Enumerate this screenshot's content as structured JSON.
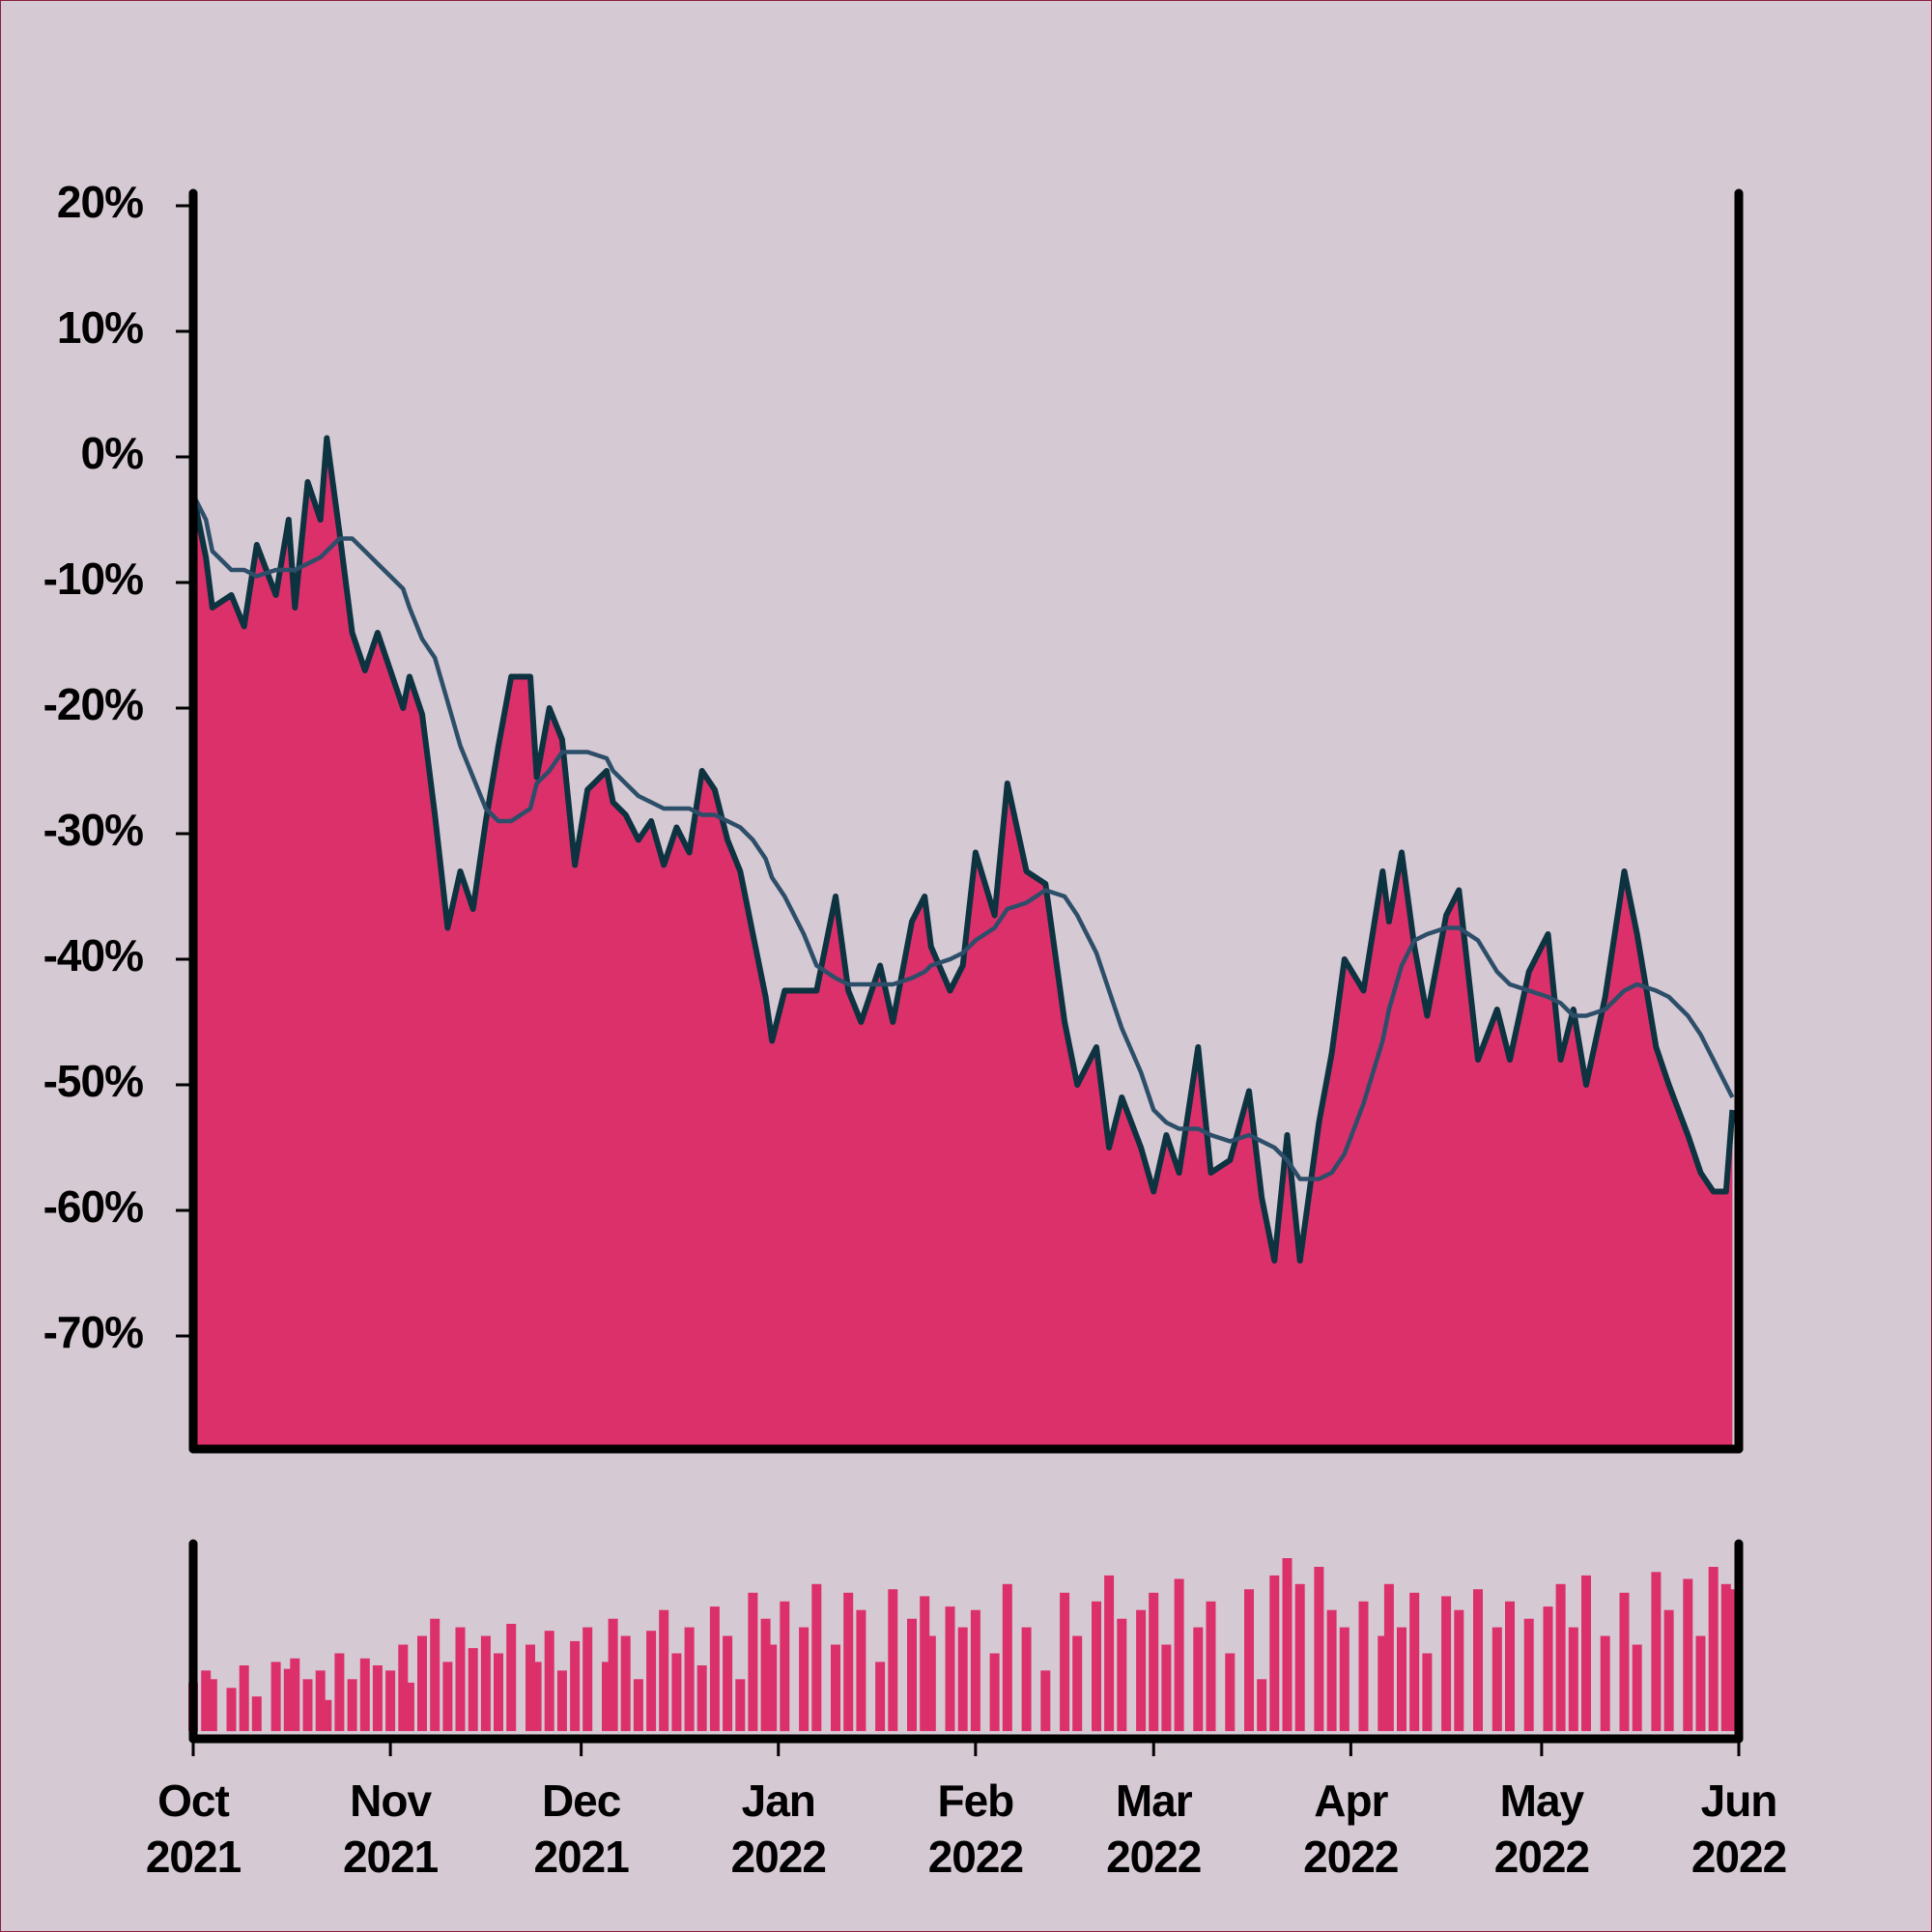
{
  "chart_data": {
    "type": "area",
    "x": [
      "2021-10-01",
      "2021-10-03",
      "2021-10-04",
      "2021-10-07",
      "2021-10-09",
      "2021-10-11",
      "2021-10-14",
      "2021-10-16",
      "2021-10-17",
      "2021-10-19",
      "2021-10-21",
      "2021-10-22",
      "2021-10-24",
      "2021-10-26",
      "2021-10-28",
      "2021-10-30",
      "2021-11-01",
      "2021-11-03",
      "2021-11-04",
      "2021-11-06",
      "2021-11-08",
      "2021-11-10",
      "2021-11-12",
      "2021-11-14",
      "2021-11-16",
      "2021-11-18",
      "2021-11-20",
      "2021-11-23",
      "2021-11-24",
      "2021-11-26",
      "2021-11-28",
      "2021-11-30",
      "2021-12-02",
      "2021-12-05",
      "2021-12-06",
      "2021-12-08",
      "2021-12-10",
      "2021-12-12",
      "2021-12-14",
      "2021-12-16",
      "2021-12-18",
      "2021-12-20",
      "2021-12-22",
      "2021-12-24",
      "2021-12-26",
      "2021-12-28",
      "2021-12-30",
      "2021-12-31",
      "2022-01-02",
      "2022-01-05",
      "2022-01-07",
      "2022-01-10",
      "2022-01-12",
      "2022-01-14",
      "2022-01-17",
      "2022-01-19",
      "2022-01-22",
      "2022-01-24",
      "2022-01-25",
      "2022-01-28",
      "2022-01-30",
      "2022-02-01",
      "2022-02-04",
      "2022-02-06",
      "2022-02-09",
      "2022-02-12",
      "2022-02-15",
      "2022-02-17",
      "2022-02-20",
      "2022-02-22",
      "2022-02-24",
      "2022-02-27",
      "2022-03-01",
      "2022-03-03",
      "2022-03-05",
      "2022-03-08",
      "2022-03-10",
      "2022-03-13",
      "2022-03-16",
      "2022-03-18",
      "2022-03-20",
      "2022-03-22",
      "2022-03-24",
      "2022-03-27",
      "2022-03-29",
      "2022-03-31",
      "2022-04-03",
      "2022-04-06",
      "2022-04-07",
      "2022-04-09",
      "2022-04-11",
      "2022-04-13",
      "2022-04-16",
      "2022-04-18",
      "2022-04-21",
      "2022-04-24",
      "2022-04-26",
      "2022-04-29",
      "2022-05-02",
      "2022-05-04",
      "2022-05-06",
      "2022-05-08",
      "2022-05-11",
      "2022-05-14",
      "2022-05-16",
      "2022-05-19",
      "2022-05-21",
      "2022-05-24",
      "2022-05-26",
      "2022-05-28",
      "2022-05-30",
      "2022-05-31"
    ],
    "series": [
      {
        "type": "area",
        "color": "#dc306a",
        "line_color": "#0d3240",
        "values": [
          -3,
          -8,
          -12,
          -11,
          -13.5,
          -7,
          -11,
          -5,
          -12,
          -2,
          -5,
          1.5,
          -6,
          -14,
          -17,
          -14,
          -17,
          -20,
          -17.5,
          -20.5,
          -28.5,
          -37.5,
          -33,
          -36,
          -29,
          -23,
          -17.5,
          -17.5,
          -25.5,
          -20,
          -22.5,
          -32.5,
          -26.5,
          -25,
          -27.5,
          -28.5,
          -30.5,
          -29,
          -32.5,
          -29.5,
          -31.5,
          -25,
          -26.5,
          -30.5,
          -33,
          -38,
          -43,
          -46.5,
          -42.5,
          -42.5,
          -42.5,
          -35,
          -42.5,
          -45,
          -40.5,
          -45,
          -37,
          -35,
          -39,
          -42.5,
          -40.5,
          -31.5,
          -36.5,
          -26,
          -33,
          -34,
          -45,
          -50,
          -47,
          -55,
          -51,
          -55,
          -58.5,
          -54,
          -57,
          -47,
          -57,
          -56,
          -50.5,
          -59,
          -64,
          -54,
          -64,
          -53,
          -47.5,
          -40,
          -42.5,
          -33,
          -37,
          -31.5,
          -39,
          -44.5,
          -36.5,
          -34.5,
          -48,
          -44,
          -48,
          -41,
          -38,
          -48,
          -44,
          -50,
          -43,
          -33,
          -38,
          -47,
          -50,
          -54,
          -57,
          -58.5,
          -58.5,
          -52
        ]
      },
      {
        "type": "line",
        "color": "#2d4e69",
        "values": [
          -3,
          -5,
          -7.5,
          -9,
          -9,
          -9.5,
          -9,
          -9,
          -9,
          -8.5,
          -8,
          -7.5,
          -6.5,
          -6.5,
          -7.5,
          -8.5,
          -9.5,
          -10.5,
          -12,
          -14.5,
          -16,
          -19.5,
          -23,
          -25.5,
          -28,
          -29,
          -29,
          -28,
          -26,
          -25,
          -23.5,
          -23.5,
          -23.5,
          -24,
          -25,
          -26,
          -27,
          -27.5,
          -28,
          -28,
          -28,
          -28.5,
          -28.5,
          -29,
          -29.5,
          -30.5,
          -32,
          -33.5,
          -35,
          -38,
          -40.5,
          -41.5,
          -42,
          -42,
          -42,
          -42,
          -41.5,
          -41,
          -40.5,
          -40,
          -39.5,
          -38.5,
          -37.5,
          -36,
          -35.5,
          -34.5,
          -35,
          -36.5,
          -39.5,
          -42.5,
          -45.5,
          -49,
          -52,
          -53,
          -53.5,
          -53.5,
          -54,
          -54.5,
          -54,
          -54.5,
          -55,
          -56,
          -57.5,
          -57.5,
          -57,
          -55.5,
          -51.5,
          -46.5,
          -44,
          -40.5,
          -38.5,
          -38,
          -37.5,
          -37.5,
          -38.5,
          -41,
          -42,
          -42.5,
          -43,
          -43.5,
          -44.5,
          -44.5,
          -44,
          -42.5,
          -42,
          -42.5,
          -43,
          -44.5,
          -46,
          -48,
          -50,
          -51
        ]
      }
    ],
    "volume": {
      "type": "bar",
      "color": "#dc306a",
      "ylim": [
        0,
        100
      ],
      "values": [
        28,
        35,
        30,
        25,
        38,
        20,
        40,
        36,
        42,
        30,
        35,
        18,
        45,
        30,
        42,
        38,
        35,
        50,
        28,
        55,
        65,
        40,
        60,
        48,
        55,
        45,
        62,
        50,
        40,
        58,
        35,
        52,
        60,
        40,
        65,
        55,
        30,
        58,
        70,
        45,
        60,
        38,
        72,
        55,
        30,
        80,
        65,
        50,
        75,
        60,
        85,
        50,
        80,
        70,
        40,
        82,
        65,
        78,
        55,
        72,
        60,
        70,
        45,
        85,
        60,
        35,
        80,
        55,
        75,
        90,
        65,
        70,
        80,
        50,
        88,
        60,
        75,
        45,
        82,
        30,
        90,
        100,
        85,
        95,
        70,
        60,
        75,
        55,
        85,
        60,
        80,
        45,
        78,
        70,
        82,
        60,
        75,
        65,
        72,
        85,
        60,
        90,
        55,
        80,
        50,
        92,
        70,
        88,
        55,
        95,
        85,
        82
      ]
    },
    "xlim": [
      "2021-10-01",
      "2022-06-01"
    ],
    "xticks": [
      {
        "value": "2021-10-01",
        "label": [
          "Oct",
          "2021"
        ]
      },
      {
        "value": "2021-11-01",
        "label": [
          "Nov",
          "2021"
        ]
      },
      {
        "value": "2021-12-01",
        "label": [
          "Dec",
          "2021"
        ]
      },
      {
        "value": "2022-01-01",
        "label": [
          "Jan",
          "2022"
        ]
      },
      {
        "value": "2022-02-01",
        "label": [
          "Feb",
          "2022"
        ]
      },
      {
        "value": "2022-03-01",
        "label": [
          "Mar",
          "2022"
        ]
      },
      {
        "value": "2022-04-01",
        "label": [
          "Apr",
          "2022"
        ]
      },
      {
        "value": "2022-05-01",
        "label": [
          "May",
          "2022"
        ]
      },
      {
        "value": "2022-06-01",
        "label": [
          "Jun",
          "2022"
        ]
      }
    ],
    "ylim": [
      -79,
      21
    ],
    "yticks": [
      {
        "value": -70,
        "label": "-70%"
      },
      {
        "value": -60,
        "label": "-60%"
      },
      {
        "value": -50,
        "label": "-50%"
      },
      {
        "value": -40,
        "label": "-40%"
      },
      {
        "value": -30,
        "label": "-30%"
      },
      {
        "value": -20,
        "label": "-20%"
      },
      {
        "value": -10,
        "label": "-10%"
      },
      {
        "value": 0,
        "label": "0%"
      },
      {
        "value": 10,
        "label": "10%"
      },
      {
        "value": 20,
        "label": "20%"
      }
    ],
    "grid": false
  }
}
